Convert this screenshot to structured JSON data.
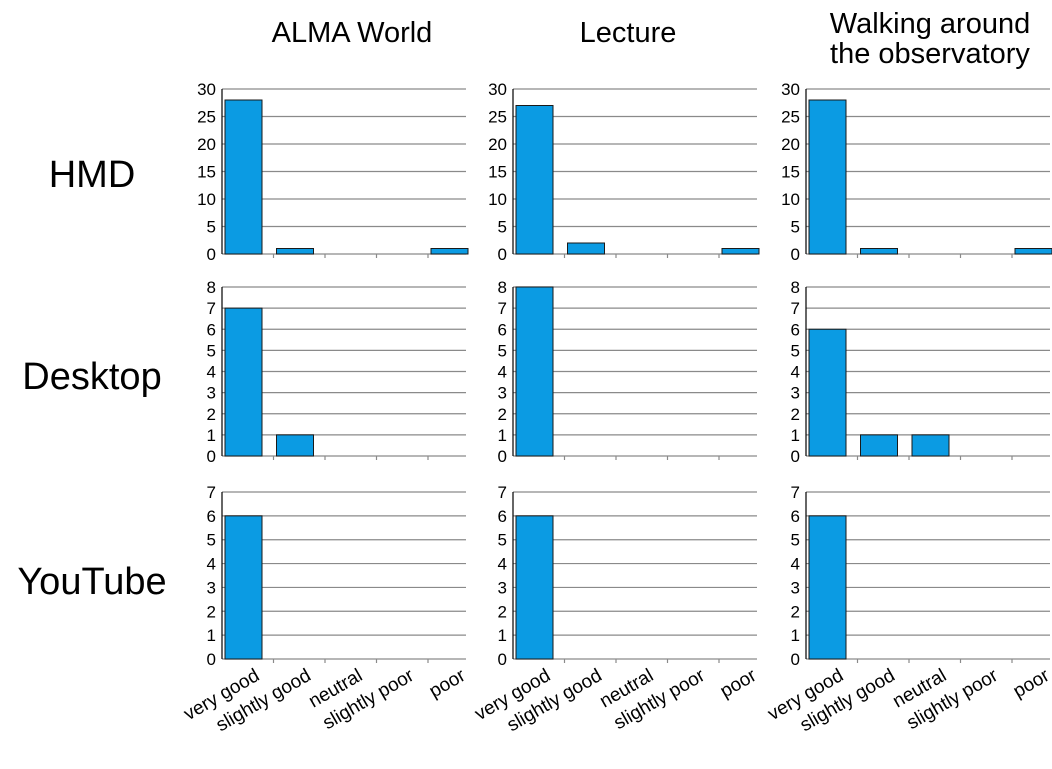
{
  "chart_data": {
    "type": "bar",
    "categories": [
      "very good",
      "slightly good",
      "neutral",
      "slightly poor",
      "poor"
    ],
    "column_titles": [
      [
        "ALMA World"
      ],
      [
        "Lecture"
      ],
      [
        "Walking around",
        "the observatory"
      ]
    ],
    "row_labels": [
      "HMD",
      "Desktop",
      "YouTube"
    ],
    "bar_color": "#0b9be3",
    "grid": true,
    "panels": [
      {
        "row": "HMD",
        "column": "ALMA World",
        "ylim": [
          0,
          30
        ],
        "yticks": [
          0,
          5,
          10,
          15,
          20,
          25,
          30
        ],
        "values": [
          28,
          1,
          0,
          0,
          1
        ]
      },
      {
        "row": "HMD",
        "column": "Lecture",
        "ylim": [
          0,
          30
        ],
        "yticks": [
          0,
          5,
          10,
          15,
          20,
          25,
          30
        ],
        "values": [
          27,
          2,
          0,
          0,
          1
        ]
      },
      {
        "row": "HMD",
        "column": "Walking around the observatory",
        "ylim": [
          0,
          30
        ],
        "yticks": [
          0,
          5,
          10,
          15,
          20,
          25,
          30
        ],
        "values": [
          28,
          1,
          0,
          0,
          1
        ]
      },
      {
        "row": "Desktop",
        "column": "ALMA World",
        "ylim": [
          0,
          8
        ],
        "yticks": [
          0,
          1,
          2,
          3,
          4,
          5,
          6,
          7,
          8
        ],
        "values": [
          7,
          1,
          0,
          0,
          0
        ]
      },
      {
        "row": "Desktop",
        "column": "Lecture",
        "ylim": [
          0,
          8
        ],
        "yticks": [
          0,
          1,
          2,
          3,
          4,
          5,
          6,
          7,
          8
        ],
        "values": [
          8,
          0,
          0,
          0,
          0
        ]
      },
      {
        "row": "Desktop",
        "column": "Walking around the observatory",
        "ylim": [
          0,
          8
        ],
        "yticks": [
          0,
          1,
          2,
          3,
          4,
          5,
          6,
          7,
          8
        ],
        "values": [
          6,
          1,
          1,
          0,
          0
        ]
      },
      {
        "row": "YouTube",
        "column": "ALMA World",
        "ylim": [
          0,
          7
        ],
        "yticks": [
          0,
          1,
          2,
          3,
          4,
          5,
          6,
          7
        ],
        "values": [
          6,
          0,
          0,
          0,
          0
        ]
      },
      {
        "row": "YouTube",
        "column": "Lecture",
        "ylim": [
          0,
          7
        ],
        "yticks": [
          0,
          1,
          2,
          3,
          4,
          5,
          6,
          7
        ],
        "values": [
          6,
          0,
          0,
          0,
          0
        ]
      },
      {
        "row": "YouTube",
        "column": "Walking around the observatory",
        "ylim": [
          0,
          7
        ],
        "yticks": [
          0,
          1,
          2,
          3,
          4,
          5,
          6,
          7
        ],
        "values": [
          6,
          0,
          0,
          0,
          0
        ]
      }
    ]
  }
}
